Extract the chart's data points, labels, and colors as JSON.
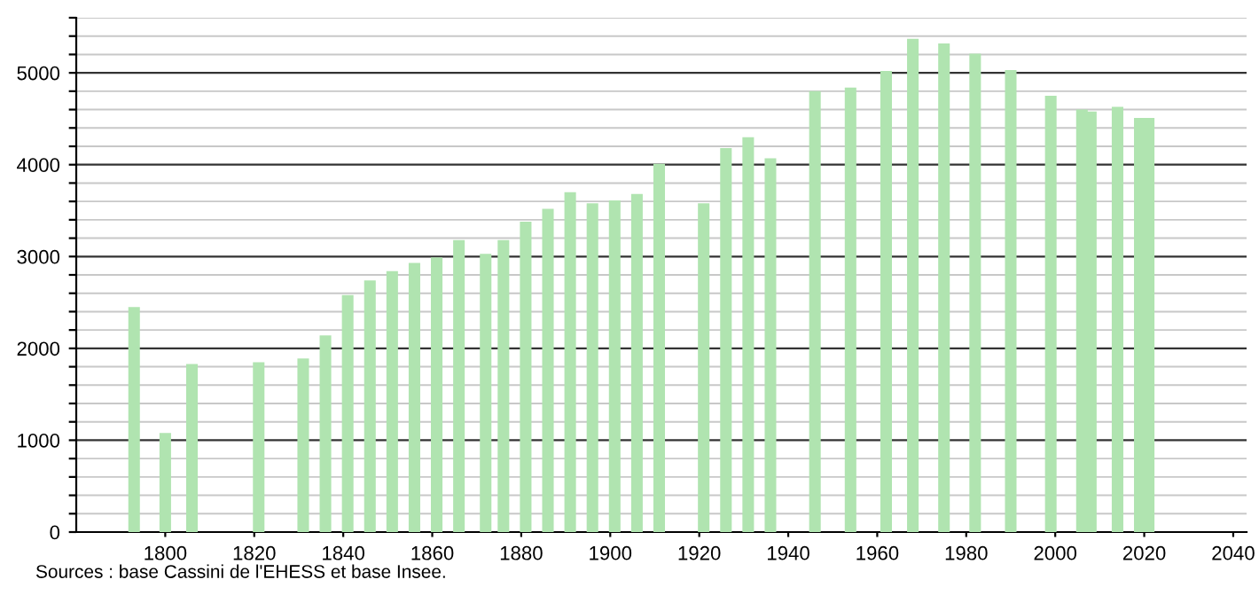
{
  "chart_data": {
    "type": "bar",
    "x": [
      1793,
      1800,
      1806,
      1821,
      1831,
      1836,
      1841,
      1846,
      1851,
      1856,
      1861,
      1866,
      1872,
      1876,
      1881,
      1886,
      1891,
      1896,
      1901,
      1906,
      1911,
      1921,
      1926,
      1931,
      1936,
      1946,
      1954,
      1962,
      1968,
      1975,
      1982,
      1990,
      1999,
      2006,
      2008,
      2014,
      2019,
      2021
    ],
    "values": [
      2450,
      1080,
      1830,
      1850,
      1890,
      2140,
      2580,
      2740,
      2840,
      2930,
      2990,
      3180,
      3030,
      3180,
      3380,
      3520,
      3700,
      3580,
      3610,
      3680,
      4010,
      3580,
      4180,
      4300,
      4070,
      4800,
      4840,
      5020,
      5370,
      5320,
      5210,
      5030,
      4750,
      4600,
      4580,
      4630,
      4510,
      4510
    ],
    "color": "#b0e4b0",
    "xlim": [
      1780,
      2043
    ],
    "xticks": [
      1800,
      1820,
      1840,
      1860,
      1880,
      1900,
      1920,
      1940,
      1960,
      1980,
      2000,
      2020,
      2040
    ],
    "ylim": [
      0,
      5600
    ],
    "yticks": [
      0,
      {
        "value": 200,
        "label": null
      },
      {
        "value": 400,
        "label": null
      },
      {
        "value": 600,
        "label": null
      },
      {
        "value": 800,
        "label": null
      },
      1000,
      {
        "value": 1200,
        "label": null
      },
      {
        "value": 1400,
        "label": null
      },
      {
        "value": 1600,
        "label": null
      },
      {
        "value": 1800,
        "label": null
      },
      2000,
      {
        "value": 2200,
        "label": null
      },
      {
        "value": 2400,
        "label": null
      },
      {
        "value": 2600,
        "label": null
      },
      {
        "value": 2800,
        "label": null
      },
      3000,
      {
        "value": 3200,
        "label": null
      },
      {
        "value": 3400,
        "label": null
      },
      {
        "value": 3600,
        "label": null
      },
      {
        "value": 3800,
        "label": null
      },
      4000,
      {
        "value": 4200,
        "label": null
      },
      {
        "value": 4400,
        "label": null
      },
      {
        "value": 4600,
        "label": null
      },
      {
        "value": 4800,
        "label": null
      },
      5000,
      {
        "value": 5200,
        "label": null
      },
      {
        "value": 5400,
        "label": null
      },
      {
        "value": 5600,
        "label": null
      }
    ],
    "grid": "y",
    "annotations": [
      "Sources : base Cassini de l'EHESS et base Insee."
    ]
  }
}
